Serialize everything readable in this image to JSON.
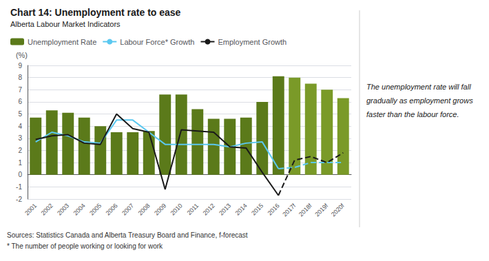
{
  "chart_data": {
    "type": "bar",
    "title": "Chart 14: Unemployment rate to ease",
    "subtitle": "Alberta Labour Market Indicators",
    "ylabel": "(%)",
    "categories": [
      "2001",
      "2002",
      "2003",
      "2004",
      "2005",
      "2006",
      "2007",
      "2008",
      "2009",
      "2010",
      "2011",
      "2012",
      "2013",
      "2014",
      "2015",
      "2016",
      "2017f",
      "2018f",
      "2019f",
      "2020f"
    ],
    "series": [
      {
        "name": "Unemployment Rate",
        "type": "bar",
        "colors": [
          "#5b7a1a",
          "#5b7a1a",
          "#5b7a1a",
          "#5b7a1a",
          "#5b7a1a",
          "#5b7a1a",
          "#5b7a1a",
          "#5b7a1a",
          "#5b7a1a",
          "#5b7a1a",
          "#5b7a1a",
          "#5b7a1a",
          "#5b7a1a",
          "#5b7a1a",
          "#5b7a1a",
          "#5b7a1a",
          "#7a9a28",
          "#7a9a28",
          "#7a9a28",
          "#7a9a28"
        ],
        "values": [
          4.7,
          5.3,
          5.1,
          4.7,
          4.0,
          3.5,
          3.5,
          3.6,
          6.6,
          6.6,
          5.4,
          4.6,
          4.6,
          4.7,
          6.0,
          8.1,
          8.0,
          7.5,
          7.0,
          6.3
        ]
      },
      {
        "name": "Labour Force* Growth",
        "type": "line",
        "color": "#5bc8f0",
        "line_style": "solid",
        "values": [
          2.7,
          3.5,
          3.2,
          2.7,
          2.6,
          4.5,
          4.5,
          3.5,
          2.5,
          2.5,
          2.5,
          2.5,
          2.3,
          2.6,
          2.7,
          0.5,
          null,
          null,
          null,
          null
        ]
      },
      {
        "name": "Labour Force* Growth",
        "type": "line",
        "color": "#5bc8f0",
        "line_style": "dashed",
        "values": [
          null,
          null,
          null,
          null,
          null,
          null,
          null,
          null,
          null,
          null,
          null,
          null,
          null,
          null,
          null,
          0.5,
          0.6,
          1.0,
          1.0,
          1.0
        ]
      },
      {
        "name": "Employment Growth",
        "type": "line",
        "color": "#1a1a1a",
        "line_style": "solid",
        "values": [
          2.9,
          3.2,
          3.3,
          2.6,
          2.5,
          5.0,
          3.8,
          3.5,
          -1.2,
          3.7,
          3.6,
          3.5,
          2.3,
          2.2,
          0.2,
          -1.7,
          null,
          null,
          null,
          null
        ]
      },
      {
        "name": "Employment Growth",
        "type": "line",
        "color": "#1a1a1a",
        "line_style": "dashed",
        "values": [
          null,
          null,
          null,
          null,
          null,
          null,
          null,
          null,
          null,
          null,
          null,
          null,
          null,
          null,
          null,
          -1.7,
          1.2,
          1.5,
          1.0,
          1.8
        ]
      }
    ],
    "ylim": [
      -2,
      9
    ],
    "yticks": [
      -2,
      -1,
      0,
      1,
      2,
      3,
      4,
      5,
      6,
      7,
      8,
      9
    ],
    "grid": true,
    "legend": "upper left",
    "annotations": [
      "The unemployment rate will fall",
      "gradually as employment grows",
      "faster than the labour force."
    ],
    "footnotes": [
      "Sources: Statistics Canada and Alberta Treasury Board and Finance, f-forecast",
      "* The number of people working or looking for work"
    ]
  }
}
